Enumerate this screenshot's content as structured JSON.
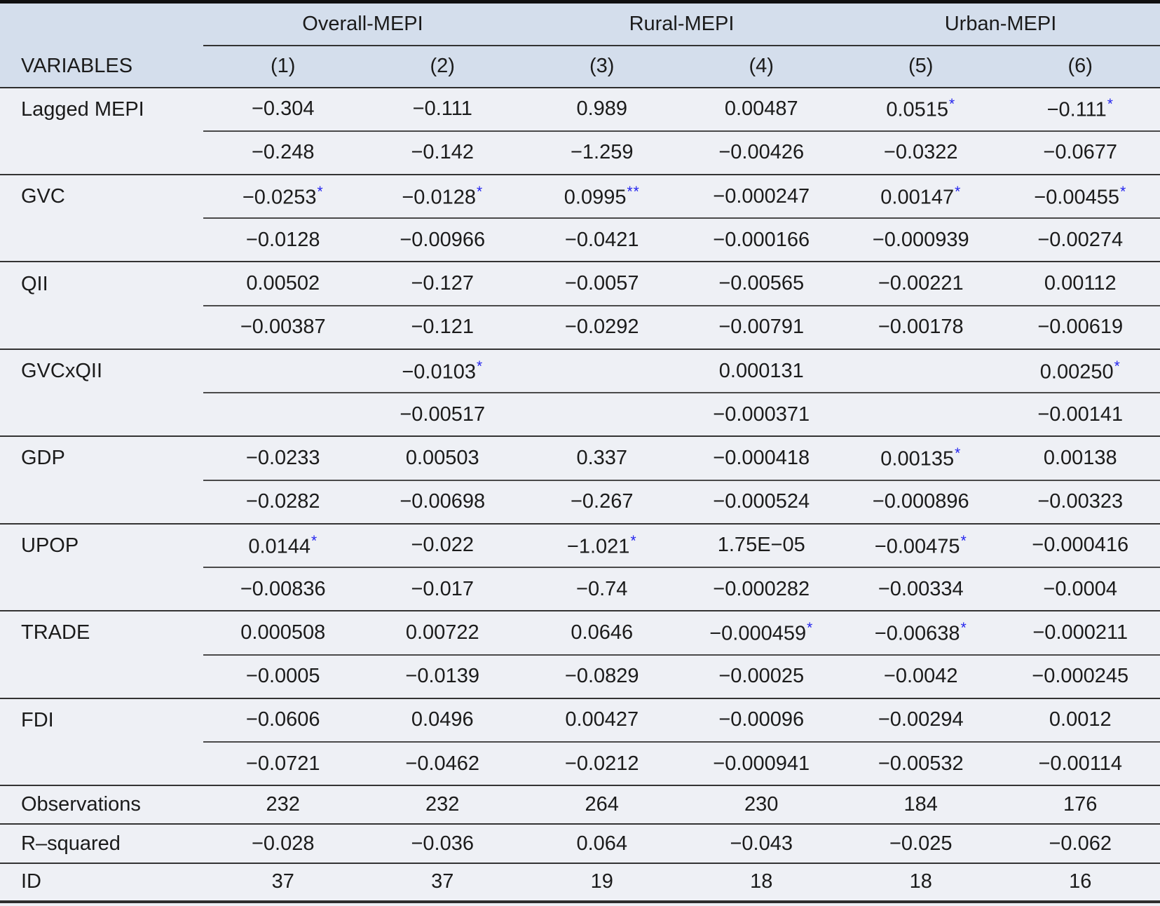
{
  "table": {
    "group_headers": [
      {
        "label": "Overall-MEPI",
        "span": 2
      },
      {
        "label": "Rural-MEPI",
        "span": 2
      },
      {
        "label": "Urban-MEPI",
        "span": 2
      }
    ],
    "column_header": {
      "variables_label": "VARIABLES",
      "columns": [
        "(1)",
        "(2)",
        "(3)",
        "(4)",
        "(5)",
        "(6)"
      ]
    },
    "colors": {
      "header_bg": "#d4deec",
      "body_bg": "#eef0f5",
      "rule": "#333333",
      "top_border": "#101010",
      "significance_star": "#2424ee",
      "text": "#1b1b1b"
    },
    "variable_blocks": [
      {
        "label": "Lagged MEPI",
        "coefficients": [
          "−0.304",
          "−0.111",
          "0.989",
          "0.00487",
          "0.0515*",
          "−0.111*"
        ],
        "std_errors": [
          "−0.248",
          "−0.142",
          "−1.259",
          "−0.00426",
          "−0.0322",
          "−0.0677"
        ]
      },
      {
        "label": "GVC",
        "coefficients": [
          "−0.0253*",
          "−0.0128*",
          "0.0995**",
          "−0.000247",
          "0.00147*",
          "−0.00455*"
        ],
        "std_errors": [
          "−0.0128",
          "−0.00966",
          "−0.0421",
          "−0.000166",
          "−0.000939",
          "−0.00274"
        ]
      },
      {
        "label": "QII",
        "coefficients": [
          "0.00502",
          "−0.127",
          "−0.0057",
          "−0.00565",
          "−0.00221",
          "0.00112"
        ],
        "std_errors": [
          "−0.00387",
          "−0.121",
          "−0.0292",
          "−0.00791",
          "−0.00178",
          "−0.00619"
        ]
      },
      {
        "label": "GVCxQII",
        "coefficients": [
          "",
          "−0.0103*",
          "",
          "0.000131",
          "",
          "0.00250*"
        ],
        "std_errors": [
          "",
          "−0.00517",
          "",
          "−0.000371",
          "",
          "−0.00141"
        ]
      },
      {
        "label": "GDP",
        "coefficients": [
          "−0.0233",
          "0.00503",
          "0.337",
          "−0.000418",
          "0.00135*",
          "0.00138"
        ],
        "std_errors": [
          "−0.0282",
          "−0.00698",
          "−0.267",
          "−0.000524",
          "−0.000896",
          "−0.00323"
        ]
      },
      {
        "label": "UPOP",
        "coefficients": [
          "0.0144*",
          "−0.022",
          "−1.021*",
          "1.75E−05",
          "−0.00475*",
          "−0.000416"
        ],
        "std_errors": [
          "−0.00836",
          "−0.017",
          "−0.74",
          "−0.000282",
          "−0.00334",
          "−0.0004"
        ]
      },
      {
        "label": "TRADE",
        "coefficients": [
          "0.000508",
          "0.00722",
          "0.0646",
          "−0.000459*",
          "−0.00638*",
          "−0.000211"
        ],
        "std_errors": [
          "−0.0005",
          "−0.0139",
          "−0.0829",
          "−0.00025",
          "−0.0042",
          "−0.000245"
        ]
      },
      {
        "label": "FDI",
        "coefficients": [
          "−0.0606",
          "0.0496",
          "0.00427",
          "−0.00096",
          "−0.00294",
          "0.0012"
        ],
        "std_errors": [
          "−0.0721",
          "−0.0462",
          "−0.0212",
          "−0.000941",
          "−0.00532",
          "−0.00114"
        ]
      }
    ],
    "summary_rows": [
      {
        "label": "Observations",
        "values": [
          "232",
          "232",
          "264",
          "230",
          "184",
          "176"
        ]
      },
      {
        "label": "R–squared",
        "values": [
          "−0.028",
          "−0.036",
          "0.064",
          "−0.043",
          "−0.025",
          "−0.062"
        ]
      },
      {
        "label": "ID",
        "values": [
          "37",
          "37",
          "19",
          "18",
          "18",
          "16"
        ]
      }
    ]
  }
}
